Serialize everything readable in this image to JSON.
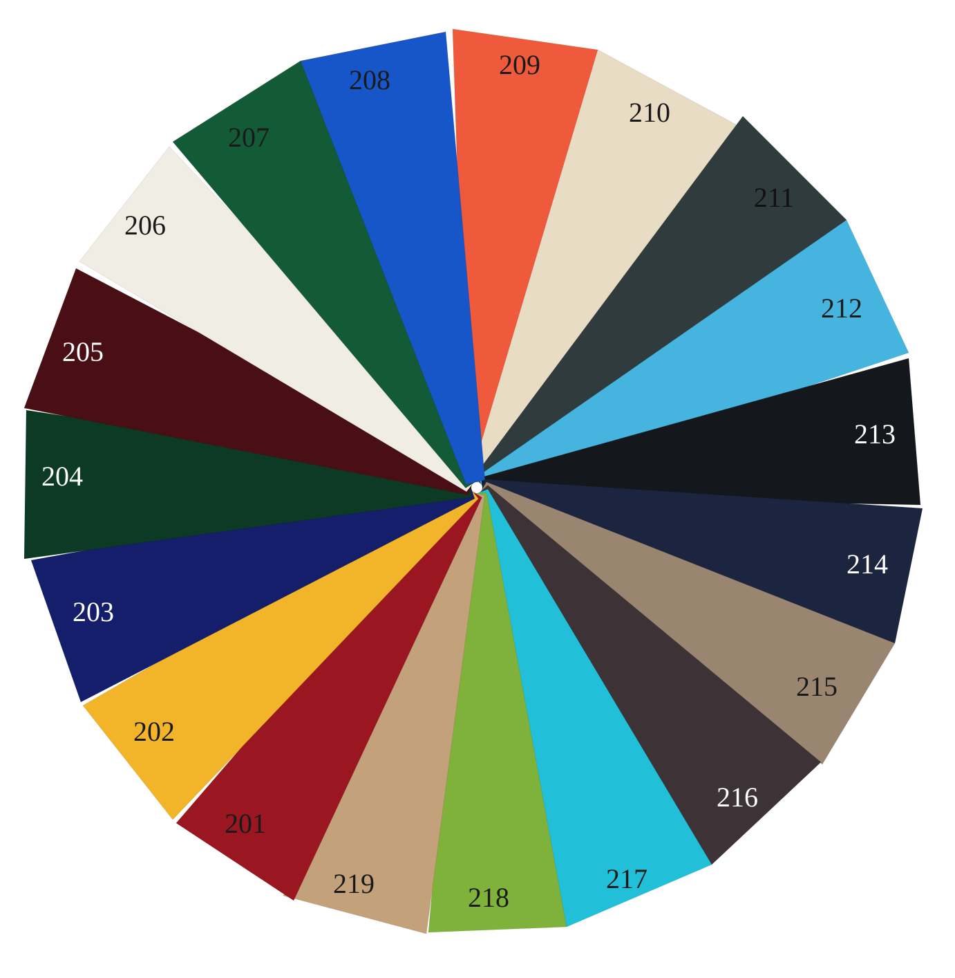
{
  "swatches": [
    {
      "label": "209",
      "color": "#f05a3c",
      "text_color": "#1a1a1a"
    },
    {
      "label": "210",
      "color": "#e8dcc4",
      "text_color": "#1a1a1a"
    },
    {
      "label": "211",
      "color": "#2f3b3d",
      "text_color": "#111111"
    },
    {
      "label": "212",
      "color": "#45b5e0",
      "text_color": "#1a1a1a"
    },
    {
      "label": "213",
      "color": "#14181c",
      "text_color": "#ffffff"
    },
    {
      "label": "214",
      "color": "#1c2540",
      "text_color": "#ffffff"
    },
    {
      "label": "215",
      "color": "#9a8670",
      "text_color": "#1a1a1a"
    },
    {
      "label": "216",
      "color": "#3d3235",
      "text_color": "#ffffff"
    },
    {
      "label": "217",
      "color": "#22c0d8",
      "text_color": "#1a1a1a"
    },
    {
      "label": "218",
      "color": "#7fb23a",
      "text_color": "#1a1a1a"
    },
    {
      "label": "219",
      "color": "#c3a17a",
      "text_color": "#1a1a1a"
    },
    {
      "label": "201",
      "color": "#9a1620",
      "text_color": "#1a1a1a"
    },
    {
      "label": "202",
      "color": "#f2b428",
      "text_color": "#1a1a1a"
    },
    {
      "label": "203",
      "color": "#141e6a",
      "text_color": "#ffffff"
    },
    {
      "label": "204",
      "color": "#0c3a24",
      "text_color": "#ffffff"
    },
    {
      "label": "205",
      "color": "#4a0f14",
      "text_color": "#ffffff"
    },
    {
      "label": "206",
      "color": "#f0eee4",
      "text_color": "#1a1a1a"
    },
    {
      "label": "207",
      "color": "#135a36",
      "text_color": "#1a1a1a"
    },
    {
      "label": "208",
      "color": "#1656c8",
      "text_color": "#1a1a1a"
    }
  ]
}
